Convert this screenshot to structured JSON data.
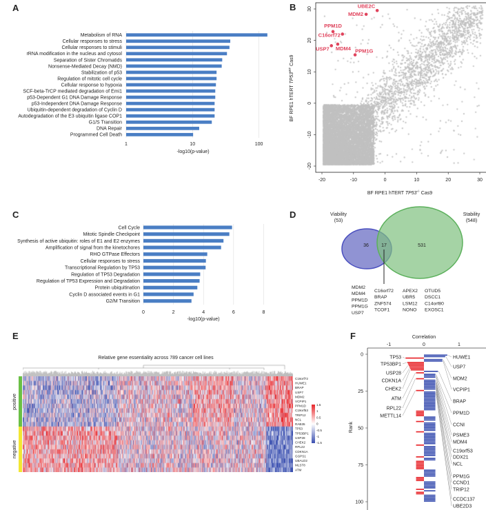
{
  "panels": {
    "a": "A",
    "b": "B",
    "c": "C",
    "d": "D",
    "e": "E",
    "f": "F"
  },
  "chart_data": [
    {
      "id": "A",
      "type": "bar",
      "orientation": "horizontal",
      "xscale": "log",
      "xlabel": "-log10(p-value)",
      "xticks": [
        "1",
        "10",
        "100"
      ],
      "xtick_values": [
        1,
        10,
        100
      ],
      "categories": [
        "Metabolism of RNA",
        "Cellular responses to stress",
        "Cellular responses to stimuli",
        "rRNA modification in the nucleus and cytosol",
        "Separation of Sister Chromatids",
        "Nonsense-Mediated Decay (NMD)",
        "Stabilization of p53",
        "Regulation of mitotic cell cycle",
        "Cellular response to hypoxia",
        "SCF-beta-TrCP mediated degradation of Emi1",
        "p53-Dependent G1 DNA Damage Response",
        "p53-Independent DNA Damage Response",
        "Ubiquitin-dependent degradation of Cyclin D",
        "Autodegradation of the E3 ubiquitin ligase COP1",
        "G1/S Transition",
        "DNA Repair",
        "Programmed Cell Death"
      ],
      "values": [
        134,
        37,
        36,
        33,
        28,
        27.5,
        23,
        23,
        22.5,
        22,
        22,
        21.5,
        21.5,
        21.5,
        19.5,
        12.6,
        10.2
      ],
      "color": "#4a7ec4"
    },
    {
      "id": "B",
      "type": "scatter",
      "xlabel_pre": "BF RPE1 hTERT ",
      "xlabel_ital": "TP53",
      "xlabel_sup": "-/-",
      "xlabel_post": " Cas9",
      "ylabel_pre": "BF RPE1 hTERT ",
      "ylabel_ital": "TP53",
      "ylabel_sup": "WT",
      "ylabel_post": " Cas9",
      "xlim": [
        -22,
        31
      ],
      "ylim": [
        -22,
        31
      ],
      "xticks": [
        "-20",
        "-10",
        "0",
        "10",
        "20",
        "30"
      ],
      "xtick_values": [
        -20,
        -10,
        0,
        10,
        20,
        30
      ],
      "yticks": [
        "-20",
        "-10",
        "0",
        "10",
        "20",
        "30"
      ],
      "ytick_values": [
        -20,
        -10,
        0,
        10,
        20,
        30
      ],
      "background_color": "#c0c0c0",
      "highlight_color": "#e0435c",
      "highlighted": [
        {
          "label": "UBE2C",
          "x": -2.5,
          "y": 29.5
        },
        {
          "label": "MDM2",
          "x": -6,
          "y": 28.3
        },
        {
          "label": "PPM1D",
          "x": -16.5,
          "y": 22.8
        },
        {
          "label": "C16orf72",
          "x": -13.5,
          "y": 22
        },
        {
          "label": "MDM4",
          "x": -15,
          "y": 18.8
        },
        {
          "label": "USP7",
          "x": -17,
          "y": 18.3
        },
        {
          "label": "PPM1G",
          "x": -9.5,
          "y": 15.4
        }
      ]
    },
    {
      "id": "C",
      "type": "bar",
      "orientation": "horizontal",
      "xlabel": "-log10(p-value)",
      "xlim": [
        0,
        8
      ],
      "xticks": [
        "0",
        "2",
        "4",
        "6",
        "8"
      ],
      "xtick_values": [
        0,
        2,
        4,
        6,
        8
      ],
      "categories": [
        "Cell Cycle",
        "Mitotic Spindle Checkpoint",
        "Synthesis of active ubiquitin: roles of E1 and E2 enzymes",
        "Amplification of signal from the kinetochores",
        "RHO GTPase Effectors",
        "Cellular responses to stress",
        "Transcriptional Regulation by TP53",
        "Regulation of TP53 Degradation",
        "Regulation of TP53 Expression and Degradation",
        "Protein ubiquitination",
        "Cyclin D associated events in G1",
        "G2/M Transition"
      ],
      "values": [
        5.9,
        5.72,
        5.33,
        5.17,
        4.25,
        4.16,
        4.14,
        3.78,
        3.74,
        3.59,
        3.34,
        3.2
      ],
      "color": "#4a7ec4"
    },
    {
      "id": "D",
      "type": "venn",
      "sets": [
        {
          "name": "Viability",
          "size_label": "(53)",
          "only": "36",
          "color": "#6b6fc4"
        },
        {
          "name": "Stability",
          "size_label": "(548)",
          "only": "531",
          "color": "#7fc07f"
        }
      ],
      "overlap": "17",
      "gene_columns": [
        [
          "MDM2",
          "MDM4",
          "PPM1D",
          "PPM1G",
          "USP7"
        ],
        [
          "C16orf72",
          "BRAP",
          "ZNF574",
          "TCOF1"
        ],
        [
          "APEX2",
          "UBR5",
          "LSM12",
          "NONO"
        ],
        [
          "OTUD5",
          "DSCC1",
          "C14orf80",
          "EXOSC1"
        ]
      ]
    },
    {
      "id": "E",
      "type": "heatmap",
      "title": "Relative gene essentiality across 789 cancer cell lines",
      "n_columns": 789,
      "groups": [
        {
          "name": "positive",
          "color": "#6abf45",
          "rows": [
            "C16orf72",
            "HUWE1",
            "BRAP",
            "USP7",
            "MDM2",
            "VCPIP1",
            "PPM1D",
            "C19orf53",
            "TRIP12",
            "NCL",
            "RAB35"
          ]
        },
        {
          "name": "negative",
          "color": "#f2e632",
          "rows": [
            "TP53",
            "TP53BP1",
            "USP28",
            "CHEK2",
            "RPL22",
            "CDKN1A",
            "GGPS1",
            "UBALD2",
            "MLST8",
            "ATM"
          ]
        }
      ],
      "legend_ticks": [
        "1.5",
        "1",
        "0.5",
        "0",
        "-0.5",
        "-1",
        "-1.5"
      ],
      "colors": {
        "high": "#e8262b",
        "mid": "#ffffff",
        "low": "#3a4fb0"
      }
    },
    {
      "id": "F",
      "type": "bar",
      "orientation": "horizontal",
      "xlabel": "Correlation",
      "ylabel": "Rank",
      "xticks": [
        "-1",
        "0",
        "1"
      ],
      "xtick_values": [
        -1,
        0,
        1
      ],
      "yticks": [
        "0",
        "25",
        "50",
        "75",
        "100"
      ],
      "ytick_values": [
        0,
        25,
        50,
        75,
        100
      ],
      "n_ranks": 100,
      "negative_ranks": [
        3,
        6,
        7,
        8,
        9,
        10,
        11,
        13,
        17,
        25,
        39,
        40,
        41,
        42,
        46,
        53,
        62,
        70,
        73,
        74,
        75,
        76,
        77,
        78,
        84,
        85,
        86,
        92,
        94,
        95
      ],
      "positive_color": "#3a4fb0",
      "negative_color": "#e8262b",
      "left_labels": [
        {
          "label": "TP53",
          "rank": 3
        },
        {
          "label": "TP53BP1",
          "rank": 6
        },
        {
          "label": "USP28",
          "rank": 8
        },
        {
          "label": "CDKN1A",
          "rank": 10
        },
        {
          "label": "CHEK2",
          "rank": 11
        },
        {
          "label": "ATM",
          "rank": 13
        },
        {
          "label": "RPL22",
          "rank": 17
        },
        {
          "label": "METTL14",
          "rank": 25
        }
      ],
      "right_labels": [
        {
          "label": "HUWE1",
          "rank": 1
        },
        {
          "label": "USP7",
          "rank": 2
        },
        {
          "label": "MDM2",
          "rank": 4
        },
        {
          "label": "VCPIP1",
          "rank": 5
        },
        {
          "label": "BRAP",
          "rank": 12
        },
        {
          "label": "PPM1D",
          "rank": 14
        },
        {
          "label": "CCNI",
          "rank": 15
        },
        {
          "label": "PSME3",
          "rank": 16
        },
        {
          "label": "MDM4",
          "rank": 18
        },
        {
          "label": "C19orf53",
          "rank": 19
        },
        {
          "label": "DDX21",
          "rank": 20
        },
        {
          "label": "NCL",
          "rank": 21
        },
        {
          "label": "PPM1G",
          "rank": 22
        },
        {
          "label": "CCND1",
          "rank": 23
        },
        {
          "label": "TRIP12",
          "rank": 24
        },
        {
          "label": "CCDC137",
          "rank": 26
        },
        {
          "label": "UBE2D3",
          "rank": 27
        }
      ]
    }
  ]
}
